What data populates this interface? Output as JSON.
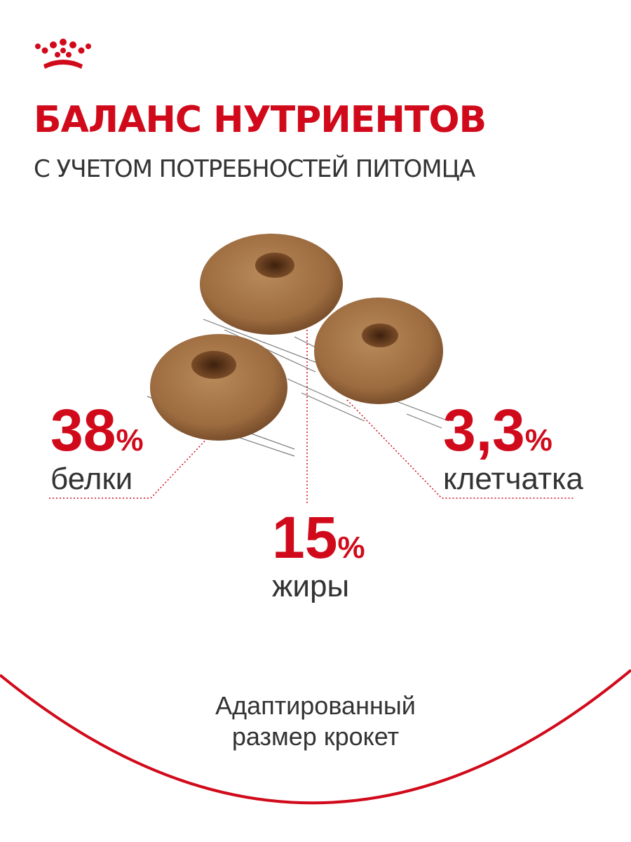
{
  "header": {
    "title": "БАЛАНС НУТРИЕНТОВ",
    "subtitle": "С УЧЕТОМ ПОТРЕБНОСТЕЙ ПИТОМЦА"
  },
  "nutrients": [
    {
      "value": "38",
      "unit": "%",
      "label": "белки"
    },
    {
      "value": "15",
      "unit": "%",
      "label": "жиры"
    },
    {
      "value": "3,3",
      "unit": "%",
      "label": "клетчатка"
    }
  ],
  "footer": {
    "lines": [
      "Адаптированный",
      "размер крокет"
    ]
  }
}
